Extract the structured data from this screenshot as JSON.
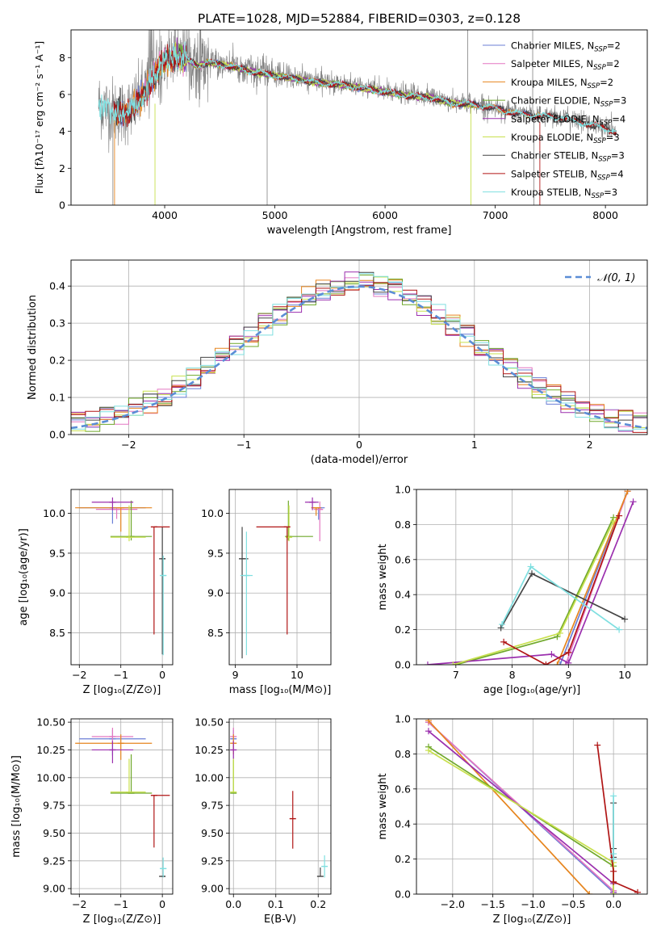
{
  "colors": {
    "chabrier_miles": "#6b7fd6",
    "salpeter_miles": "#e377c2",
    "kroupa_miles": "#e6851e",
    "chabrier_elodie": "#6fa82a",
    "salpeter_elodie": "#9b2fae",
    "kroupa_elodie": "#c8e04e",
    "chabrier_stelib": "#444444",
    "salpeter_stelib": "#b01515",
    "kroupa_stelib": "#7fdfe0",
    "data_spectrum": "#808080",
    "normal_curve": "#5b8dd6",
    "grid": "#b0b0b0"
  },
  "chart_data": [
    {
      "id": "spectrum",
      "type": "line",
      "title": "PLATE=1028, MJD=52884, FIBERID=0303, z=0.128",
      "xlabel": "wavelength [Angstrom, rest frame]",
      "ylabel": "Flux [fλ10⁻¹⁷ erg cm⁻² s⁻¹ A⁻¹]",
      "xlim": [
        3150,
        8380
      ],
      "ylim": [
        0,
        9.5
      ],
      "xticks": [
        4000,
        5000,
        6000,
        7000,
        8000
      ],
      "yticks": [
        0,
        2,
        4,
        6,
        8
      ],
      "grid": false,
      "legend_position": "top-right",
      "legend": [
        {
          "label": "Chabrier MILES, N",
          "sub": "SSP",
          "suffix": "=2",
          "color_key": "chabrier_miles"
        },
        {
          "label": "Salpeter MILES, N",
          "sub": "SSP",
          "suffix": "=2",
          "color_key": "salpeter_miles"
        },
        {
          "label": "Kroupa MILES, N",
          "sub": "SSP",
          "suffix": "=2",
          "color_key": "kroupa_miles"
        },
        {
          "label": "Chabrier ELODIE, N",
          "sub": "SSP",
          "suffix": "=3",
          "color_key": "chabrier_elodie"
        },
        {
          "label": "Salpeter ELODIE, N",
          "sub": "SSP",
          "suffix": "=4",
          "color_key": "salpeter_elodie"
        },
        {
          "label": "Kroupa ELODIE, N",
          "sub": "SSP",
          "suffix": "=3",
          "color_key": "kroupa_elodie"
        },
        {
          "label": "Chabrier STELIB, N",
          "sub": "SSP",
          "suffix": "=3",
          "color_key": "chabrier_stelib"
        },
        {
          "label": "Salpeter STELIB, N",
          "sub": "SSP",
          "suffix": "=4",
          "color_key": "salpeter_stelib"
        },
        {
          "label": "Kroupa STELIB, N",
          "sub": "SSP",
          "suffix": "=3",
          "color_key": "kroupa_stelib"
        }
      ],
      "continuum": {
        "x": [
          3400,
          3500,
          3600,
          3700,
          3800,
          3900,
          4000,
          4100,
          4200,
          4300,
          4400,
          4600,
          4800,
          5000,
          5200,
          5400,
          5600,
          5800,
          6000,
          6200,
          6400,
          6600,
          6800,
          7000,
          7200,
          7400,
          7600,
          7800,
          8000,
          8100
        ],
        "y": [
          5.5,
          5.2,
          5.0,
          5.2,
          6.0,
          7.0,
          7.9,
          8.1,
          8.0,
          7.6,
          7.8,
          7.6,
          7.3,
          7.1,
          6.9,
          6.7,
          6.6,
          6.4,
          6.2,
          6.0,
          5.9,
          5.6,
          5.5,
          5.3,
          5.0,
          4.9,
          4.8,
          4.5,
          4.2,
          4.0
        ]
      }
    },
    {
      "id": "residuals",
      "type": "histogram",
      "xlabel": "(data-model)/error",
      "ylabel": "Normed distribution",
      "xlim": [
        -2.5,
        2.5
      ],
      "ylim": [
        0,
        0.47
      ],
      "xticks": [
        -2,
        -1,
        0,
        1,
        2
      ],
      "yticks": [
        0.0,
        0.1,
        0.2,
        0.3,
        0.4
      ],
      "grid": true,
      "legend_position": "top-right",
      "legend_label": "𝒩(0, 1)",
      "bins": 40,
      "series_keys": [
        "chabrier_miles",
        "salpeter_miles",
        "kroupa_miles",
        "chabrier_elodie",
        "salpeter_elodie",
        "kroupa_elodie",
        "chabrier_stelib",
        "salpeter_stelib",
        "kroupa_stelib"
      ]
    },
    {
      "id": "age_vs_Z",
      "type": "errorbar",
      "xlabel": "Z [log₁₀(Z/Z⊙)]",
      "ylabel": "age  [log₁₀(age/yr)]",
      "xlim": [
        -2.2,
        0.25
      ],
      "ylim": [
        8.1,
        10.3
      ],
      "xticks": [
        -2,
        -1,
        0
      ],
      "yticks": [
        8.5,
        9.0,
        9.5,
        10.0
      ],
      "grid": true,
      "points": [
        {
          "key": "chabrier_miles",
          "x": -1.2,
          "xerr": [
            0.8,
            0.8
          ],
          "y": 10.07,
          "yerr": [
            0.2,
            0.0
          ]
        },
        {
          "key": "salpeter_miles",
          "x": -1.1,
          "xerr": [
            0.5,
            0.5
          ],
          "y": 10.05,
          "yerr": [
            0.12,
            0.02
          ]
        },
        {
          "key": "kroupa_miles",
          "x": -1.0,
          "xerr": [
            1.1,
            0.75
          ],
          "y": 10.07,
          "yerr": [
            0.3,
            0.0
          ]
        },
        {
          "key": "chabrier_elodie",
          "x": -0.75,
          "xerr": [
            0.5,
            0.5
          ],
          "y": 9.71,
          "yerr": [
            0.05,
            0.45
          ]
        },
        {
          "key": "salpeter_elodie",
          "x": -1.2,
          "xerr": [
            0.5,
            0.5
          ],
          "y": 10.14,
          "yerr": [
            0.1,
            0.06
          ]
        },
        {
          "key": "kroupa_elodie",
          "x": -0.8,
          "xerr": [
            0.45,
            0.4
          ],
          "y": 9.7,
          "yerr": [
            0.05,
            0.4
          ]
        },
        {
          "key": "chabrier_stelib",
          "x": 0.0,
          "xerr": [
            0.0,
            0.07
          ],
          "y": 9.43,
          "yerr": [
            1.2,
            0.4
          ]
        },
        {
          "key": "salpeter_stelib",
          "x": -0.2,
          "xerr": [
            0.0,
            0.38
          ],
          "y": 9.83,
          "yerr": [
            1.35,
            0.0
          ]
        },
        {
          "key": "kroupa_stelib",
          "x": 0.02,
          "xerr": [
            0.08,
            0.08
          ],
          "y": 9.22,
          "yerr": [
            1.0,
            0.25
          ]
        }
      ]
    },
    {
      "id": "age_vs_mass",
      "type": "errorbar",
      "xlabel": "mass [log₁₀(M/M⊙)]",
      "ylabel": "",
      "xlim": [
        8.9,
        10.55
      ],
      "ylim": [
        8.1,
        10.3
      ],
      "xticks": [
        9,
        10
      ],
      "yticks": [
        8.5,
        9.0,
        9.5,
        10.0
      ],
      "grid": true,
      "points": [
        {
          "key": "chabrier_miles",
          "x": 10.35,
          "xerr": [
            0.1,
            0.1
          ],
          "y": 10.07,
          "yerr": [
            0.15,
            0.0
          ]
        },
        {
          "key": "salpeter_miles",
          "x": 10.37,
          "xerr": [
            0.1,
            0.05
          ],
          "y": 10.05,
          "yerr": [
            0.4,
            0.1
          ]
        },
        {
          "key": "kroupa_miles",
          "x": 10.31,
          "xerr": [
            0.08,
            0.08
          ],
          "y": 10.07,
          "yerr": [
            0.1,
            0.0
          ]
        },
        {
          "key": "chabrier_elodie",
          "x": 9.86,
          "xerr": [
            0.0,
            0.4
          ],
          "y": 9.71,
          "yerr": [
            0.05,
            0.45
          ]
        },
        {
          "key": "salpeter_elodie",
          "x": 10.25,
          "xerr": [
            0.12,
            0.1
          ],
          "y": 10.14,
          "yerr": [
            0.1,
            0.06
          ]
        },
        {
          "key": "kroupa_elodie",
          "x": 9.87,
          "xerr": [
            0.02,
            0.02
          ],
          "y": 9.7,
          "yerr": [
            0.05,
            0.4
          ]
        },
        {
          "key": "chabrier_stelib",
          "x": 9.11,
          "xerr": [
            0.0,
            0.1
          ],
          "y": 9.43,
          "yerr": [
            1.25,
            0.4
          ]
        },
        {
          "key": "salpeter_stelib",
          "x": 9.84,
          "xerr": [
            0.5,
            0.0
          ],
          "y": 9.83,
          "yerr": [
            1.35,
            0.0
          ]
        },
        {
          "key": "kroupa_stelib",
          "x": 9.18,
          "xerr": [
            0.1,
            0.1
          ],
          "y": 9.22,
          "yerr": [
            1.0,
            0.55
          ]
        }
      ]
    },
    {
      "id": "weight_vs_age",
      "type": "line",
      "xlabel": "age  [log₁₀(age/yr)]",
      "ylabel": "mass weight",
      "xlim": [
        6.3,
        10.4
      ],
      "ylim": [
        0,
        1.0
      ],
      "xticks": [
        7,
        8,
        9,
        10
      ],
      "yticks": [
        0.0,
        0.2,
        0.4,
        0.6,
        0.8,
        1.0
      ],
      "grid": true,
      "series": [
        {
          "key": "chabrier_miles",
          "x": [
            8.85,
            10.05
          ],
          "y": [
            0.0,
            0.99
          ]
        },
        {
          "key": "salpeter_miles",
          "x": [
            8.95,
            10.05
          ],
          "y": [
            0.0,
            0.99
          ]
        },
        {
          "key": "kroupa_miles",
          "x": [
            8.8,
            10.05
          ],
          "y": [
            0.0,
            0.99
          ]
        },
        {
          "key": "chabrier_elodie",
          "x": [
            7.0,
            8.8,
            9.8
          ],
          "y": [
            0.0,
            0.16,
            0.84
          ]
        },
        {
          "key": "salpeter_elodie",
          "x": [
            6.5,
            8.7,
            9.0,
            10.15
          ],
          "y": [
            0.0,
            0.06,
            0.01,
            0.93
          ]
        },
        {
          "key": "kroupa_elodie",
          "x": [
            6.95,
            8.85,
            9.8
          ],
          "y": [
            0.0,
            0.18,
            0.82
          ]
        },
        {
          "key": "chabrier_stelib",
          "x": [
            7.8,
            8.35,
            10.0
          ],
          "y": [
            0.21,
            0.52,
            0.26
          ]
        },
        {
          "key": "salpeter_stelib",
          "x": [
            7.85,
            8.6,
            9.0,
            9.9
          ],
          "y": [
            0.13,
            0.0,
            0.07,
            0.85
          ]
        },
        {
          "key": "kroupa_stelib",
          "x": [
            7.82,
            8.33,
            9.9
          ],
          "y": [
            0.23,
            0.56,
            0.2
          ]
        }
      ]
    },
    {
      "id": "mass_vs_Z",
      "type": "errorbar",
      "xlabel": "Z [log₁₀(Z/Z⊙)]",
      "ylabel": "mass [log₁₀(M/M⊙)]",
      "xlim": [
        -2.2,
        0.25
      ],
      "ylim": [
        8.95,
        10.53
      ],
      "xticks": [
        -2,
        -1,
        0
      ],
      "yticks": [
        9.0,
        9.25,
        9.5,
        9.75,
        10.0,
        10.25,
        10.5
      ],
      "grid": true,
      "points": [
        {
          "key": "chabrier_miles",
          "x": -1.2,
          "xerr": [
            0.8,
            0.8
          ],
          "y": 10.35,
          "yerr": [
            0.15,
            0.08
          ]
        },
        {
          "key": "salpeter_miles",
          "x": -1.2,
          "xerr": [
            0.5,
            0.5
          ],
          "y": 10.37,
          "yerr": [
            0.08,
            0.08
          ]
        },
        {
          "key": "kroupa_miles",
          "x": -1.0,
          "xerr": [
            1.1,
            0.75
          ],
          "y": 10.31,
          "yerr": [
            0.15,
            0.08
          ]
        },
        {
          "key": "chabrier_elodie",
          "x": -0.75,
          "xerr": [
            0.5,
            0.5
          ],
          "y": 9.86,
          "yerr": [
            0.0,
            0.35
          ]
        },
        {
          "key": "salpeter_elodie",
          "x": -1.2,
          "xerr": [
            0.5,
            0.5
          ],
          "y": 10.25,
          "yerr": [
            0.12,
            0.08
          ]
        },
        {
          "key": "kroupa_elodie",
          "x": -0.8,
          "xerr": [
            0.45,
            0.4
          ],
          "y": 9.87,
          "yerr": [
            0.0,
            0.3
          ]
        },
        {
          "key": "chabrier_stelib",
          "x": 0.0,
          "xerr": [
            0.0,
            0.07
          ],
          "y": 9.11,
          "yerr": [
            0.0,
            0.0
          ]
        },
        {
          "key": "salpeter_stelib",
          "x": -0.2,
          "xerr": [
            0.0,
            0.38
          ],
          "y": 9.84,
          "yerr": [
            0.47,
            0.0
          ]
        },
        {
          "key": "kroupa_stelib",
          "x": 0.02,
          "xerr": [
            0.08,
            0.08
          ],
          "y": 9.18,
          "yerr": [
            0.08,
            0.1
          ]
        }
      ]
    },
    {
      "id": "mass_vs_ebv",
      "type": "errorbar",
      "xlabel": "E(B-V)",
      "ylabel": "",
      "xlim": [
        -0.01,
        0.23
      ],
      "ylim": [
        8.95,
        10.53
      ],
      "xticks": [
        0.0,
        0.1,
        0.2
      ],
      "yticks": [
        9.0,
        9.25,
        9.5,
        9.75,
        10.0,
        10.25,
        10.5
      ],
      "grid": true,
      "points": [
        {
          "key": "chabrier_miles",
          "x": 0.0,
          "xerr": [
            0,
            0
          ],
          "y": 10.35,
          "yerr": [
            0.12,
            0.08
          ]
        },
        {
          "key": "salpeter_miles",
          "x": 0.0,
          "xerr": [
            0,
            0
          ],
          "y": 10.37,
          "yerr": [
            0.08,
            0.08
          ]
        },
        {
          "key": "kroupa_miles",
          "x": 0.0,
          "xerr": [
            0,
            0
          ],
          "y": 10.31,
          "yerr": [
            0.1,
            0.08
          ]
        },
        {
          "key": "chabrier_elodie",
          "x": 0.0,
          "xerr": [
            0,
            0
          ],
          "y": 9.86,
          "yerr": [
            0.0,
            0.3
          ]
        },
        {
          "key": "salpeter_elodie",
          "x": 0.0,
          "xerr": [
            0,
            0
          ],
          "y": 10.25,
          "yerr": [
            0.08,
            0.08
          ]
        },
        {
          "key": "kroupa_elodie",
          "x": 0.0,
          "xerr": [
            0,
            0
          ],
          "y": 9.87,
          "yerr": [
            0.0,
            0.3
          ]
        },
        {
          "key": "chabrier_stelib",
          "x": 0.205,
          "xerr": [
            0,
            0
          ],
          "y": 9.11,
          "yerr": [
            0.0,
            0.08
          ]
        },
        {
          "key": "salpeter_stelib",
          "x": 0.14,
          "xerr": [
            0,
            0
          ],
          "y": 9.63,
          "yerr": [
            0.27,
            0.25
          ]
        },
        {
          "key": "kroupa_stelib",
          "x": 0.215,
          "xerr": [
            0,
            0
          ],
          "y": 9.2,
          "yerr": [
            0.1,
            0.1
          ]
        }
      ]
    },
    {
      "id": "weight_vs_Z",
      "type": "line",
      "xlabel": "Z [log₁₀(Z/Z⊙)]",
      "ylabel": "mass weight",
      "xlim": [
        -2.45,
        0.42
      ],
      "ylim": [
        0,
        1.0
      ],
      "xticks": [
        -2.0,
        -1.5,
        -1.0,
        -0.5,
        0.0
      ],
      "yticks": [
        0.0,
        0.2,
        0.4,
        0.6,
        0.8,
        1.0
      ],
      "grid": true,
      "series": [
        {
          "key": "chabrier_miles",
          "x": [
            -2.3,
            0.0
          ],
          "y": [
            0.98,
            0.01
          ]
        },
        {
          "key": "salpeter_miles",
          "x": [
            -2.3,
            0.0
          ],
          "y": [
            0.98,
            0.02
          ]
        },
        {
          "key": "kroupa_miles",
          "x": [
            -2.3,
            -0.3
          ],
          "y": [
            0.99,
            0.0
          ]
        },
        {
          "key": "chabrier_elodie",
          "x": [
            -2.3,
            0.0,
            0.0
          ],
          "y": [
            0.84,
            0.16,
            0.0
          ]
        },
        {
          "key": "salpeter_elodie",
          "x": [
            -2.3,
            0.0,
            0.0
          ],
          "y": [
            0.93,
            0.06,
            0.01
          ]
        },
        {
          "key": "kroupa_elodie",
          "x": [
            -2.3,
            0.0,
            0.0
          ],
          "y": [
            0.82,
            0.18,
            0.0
          ]
        },
        {
          "key": "chabrier_stelib",
          "x": [
            0.0,
            0.0,
            0.0
          ],
          "y": [
            0.52,
            0.26,
            0.21
          ]
        },
        {
          "key": "salpeter_stelib",
          "x": [
            -0.2,
            0.0,
            0.0,
            0.3
          ],
          "y": [
            0.85,
            0.13,
            0.07,
            0.01
          ]
        },
        {
          "key": "kroupa_stelib",
          "x": [
            0.0,
            0.0,
            0.0
          ],
          "y": [
            0.56,
            0.23,
            0.2
          ]
        }
      ]
    }
  ]
}
